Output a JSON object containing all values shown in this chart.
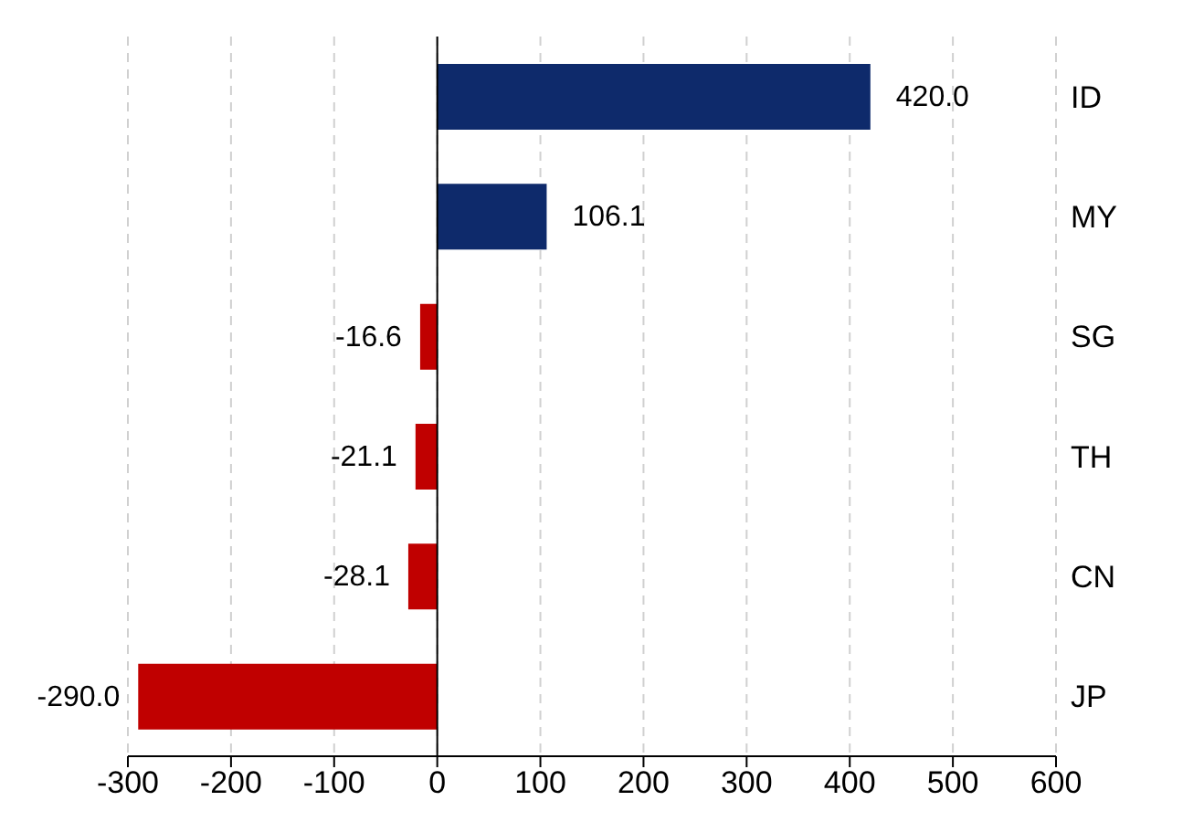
{
  "chart_data": {
    "type": "bar",
    "orientation": "horizontal",
    "categories": [
      "ID",
      "MY",
      "SG",
      "TH",
      "CN",
      "JP"
    ],
    "values": [
      420,
      106.1,
      -16.6,
      -21.1,
      -28.1,
      -290
    ],
    "colors": [
      "#0e2a6b",
      "#0e2a6b",
      "#c00000",
      "#c00000",
      "#c00000",
      "#c00000"
    ],
    "value_labels": [
      "420.0",
      "106.1",
      "-16.6",
      "-21.1",
      "-28.1",
      "-290.0"
    ],
    "xlim": [
      -300,
      600
    ],
    "xticks": [
      -300,
      -200,
      -100,
      0,
      100,
      200,
      300,
      400,
      500,
      600
    ],
    "grid": "x"
  }
}
